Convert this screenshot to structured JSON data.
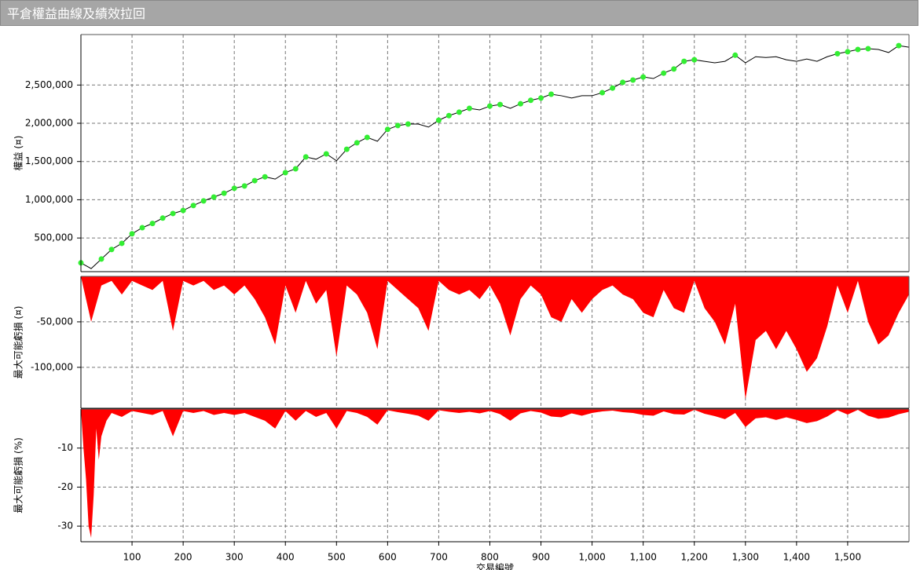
{
  "chart_data": [
    {
      "type": "line",
      "title": "平倉權益曲線及績效拉回",
      "ylabel": "權益 (¤)",
      "xlim": [
        0,
        1620
      ],
      "ylim": [
        60000,
        3160000
      ],
      "yticks": [
        {
          "value": 500000,
          "label": "500,000"
        },
        {
          "value": 1000000,
          "label": "1,000,000"
        },
        {
          "value": 1500000,
          "label": "1,500,000"
        },
        {
          "value": 2000000,
          "label": "2,000,000"
        },
        {
          "value": 2500000,
          "label": "2,500,000"
        }
      ],
      "grid": true,
      "series": [
        {
          "type": "line",
          "color": "#000000",
          "x": [
            0,
            20,
            40,
            60,
            80,
            100,
            120,
            140,
            160,
            180,
            200,
            220,
            240,
            260,
            280,
            300,
            320,
            340,
            360,
            380,
            400,
            420,
            440,
            460,
            480,
            500,
            520,
            540,
            560,
            580,
            600,
            620,
            640,
            660,
            680,
            700,
            720,
            740,
            760,
            780,
            800,
            820,
            840,
            860,
            880,
            900,
            920,
            940,
            960,
            980,
            1000,
            1020,
            1040,
            1060,
            1080,
            1100,
            1120,
            1140,
            1160,
            1180,
            1200,
            1220,
            1240,
            1260,
            1280,
            1300,
            1320,
            1340,
            1360,
            1380,
            1400,
            1420,
            1440,
            1460,
            1480,
            1500,
            1520,
            1540,
            1560,
            1580,
            1600,
            1620
          ],
          "values": [
            175000,
            100000,
            225000,
            350000,
            430000,
            555000,
            635000,
            690000,
            760000,
            820000,
            860000,
            925000,
            985000,
            1035000,
            1085000,
            1150000,
            1180000,
            1250000,
            1300000,
            1270000,
            1355000,
            1405000,
            1560000,
            1530000,
            1600000,
            1510000,
            1660000,
            1745000,
            1815000,
            1765000,
            1920000,
            1970000,
            1990000,
            1990000,
            1950000,
            2040000,
            2100000,
            2145000,
            2195000,
            2175000,
            2225000,
            2245000,
            2195000,
            2255000,
            2300000,
            2330000,
            2380000,
            2360000,
            2330000,
            2360000,
            2360000,
            2400000,
            2460000,
            2535000,
            2565000,
            2605000,
            2585000,
            2655000,
            2710000,
            2810000,
            2830000,
            2810000,
            2790000,
            2810000,
            2890000,
            2790000,
            2870000,
            2860000,
            2870000,
            2830000,
            2810000,
            2840000,
            2810000,
            2870000,
            2910000,
            2935000,
            2965000,
            2975000,
            2965000,
            2925000,
            3015000,
            2995000
          ]
        },
        {
          "type": "scatter",
          "color": "#33ee33",
          "x": [
            0,
            40,
            60,
            80,
            100,
            120,
            140,
            160,
            180,
            200,
            220,
            240,
            260,
            280,
            300,
            320,
            340,
            360,
            400,
            420,
            440,
            480,
            520,
            540,
            560,
            600,
            620,
            640,
            700,
            720,
            740,
            760,
            800,
            820,
            860,
            880,
            900,
            920,
            1020,
            1040,
            1060,
            1080,
            1100,
            1140,
            1160,
            1180,
            1200,
            1280,
            1480,
            1500,
            1520,
            1540,
            1600
          ],
          "values": [
            175000,
            225000,
            350000,
            430000,
            555000,
            635000,
            690000,
            760000,
            820000,
            860000,
            925000,
            985000,
            1035000,
            1085000,
            1150000,
            1180000,
            1250000,
            1300000,
            1355000,
            1405000,
            1560000,
            1600000,
            1660000,
            1745000,
            1815000,
            1920000,
            1970000,
            1990000,
            2040000,
            2100000,
            2145000,
            2195000,
            2225000,
            2245000,
            2255000,
            2300000,
            2330000,
            2380000,
            2400000,
            2460000,
            2535000,
            2565000,
            2605000,
            2655000,
            2710000,
            2810000,
            2830000,
            2890000,
            2910000,
            2935000,
            2965000,
            2975000,
            3015000
          ]
        }
      ]
    },
    {
      "type": "area",
      "ylabel": "最大可能虧損 (¤)",
      "color": "#ff0000",
      "xlim": [
        0,
        1620
      ],
      "ylim": [
        -145000,
        0
      ],
      "yticks": [
        {
          "value": -50000,
          "label": "-50,000"
        },
        {
          "value": -100000,
          "label": "-100,000"
        }
      ],
      "grid": true,
      "x": [
        0,
        20,
        40,
        60,
        80,
        100,
        120,
        140,
        160,
        180,
        200,
        220,
        240,
        260,
        280,
        300,
        320,
        340,
        360,
        380,
        400,
        420,
        440,
        460,
        480,
        500,
        520,
        540,
        560,
        580,
        600,
        620,
        640,
        660,
        680,
        700,
        720,
        740,
        760,
        780,
        800,
        820,
        840,
        860,
        880,
        900,
        920,
        940,
        960,
        980,
        1000,
        1020,
        1040,
        1060,
        1080,
        1100,
        1120,
        1140,
        1160,
        1180,
        1200,
        1220,
        1240,
        1260,
        1280,
        1300,
        1320,
        1340,
        1360,
        1380,
        1400,
        1420,
        1440,
        1460,
        1480,
        1500,
        1520,
        1540,
        1560,
        1580,
        1600,
        1620
      ],
      "values": [
        0,
        -50000,
        -10000,
        -5000,
        -20000,
        -5000,
        -10000,
        -15000,
        -5000,
        -60000,
        -5000,
        -10000,
        -5000,
        -15000,
        -10000,
        -20000,
        -10000,
        -25000,
        -45000,
        -75000,
        -10000,
        -40000,
        -5000,
        -30000,
        -15000,
        -88000,
        -10000,
        -20000,
        -40000,
        -80000,
        -5000,
        -15000,
        -25000,
        -35000,
        -60000,
        -5000,
        -15000,
        -20000,
        -15000,
        -25000,
        -10000,
        -30000,
        -65000,
        -25000,
        -10000,
        -20000,
        -45000,
        -50000,
        -25000,
        -40000,
        -25000,
        -15000,
        -10000,
        -20000,
        -25000,
        -40000,
        -45000,
        -15000,
        -35000,
        -40000,
        -5000,
        -35000,
        -50000,
        -75000,
        -30000,
        -135000,
        -70000,
        -60000,
        -80000,
        -60000,
        -80000,
        -105000,
        -90000,
        -55000,
        -10000,
        -40000,
        -5000,
        -50000,
        -75000,
        -65000,
        -40000,
        -20000
      ]
    },
    {
      "type": "area",
      "ylabel": "最大可能虧損 (%)",
      "xlabel": "交易編號",
      "color": "#ff0000",
      "xlim": [
        0,
        1620
      ],
      "ylim": [
        -34,
        0
      ],
      "yticks": [
        -10,
        -20,
        -30
      ],
      "xticks": [
        100,
        200,
        300,
        400,
        500,
        600,
        700,
        800,
        900,
        {
          "value": 1000,
          "label": "1,000"
        },
        {
          "value": 1100,
          "label": "1,100"
        },
        {
          "value": 1200,
          "label": "1,200"
        },
        {
          "value": 1300,
          "label": "1,300"
        },
        {
          "value": 1400,
          "label": "1,400"
        },
        {
          "value": 1500,
          "label": "1,500"
        }
      ],
      "grid": true,
      "x": [
        0,
        5,
        10,
        15,
        20,
        25,
        30,
        35,
        40,
        50,
        60,
        80,
        100,
        120,
        140,
        160,
        180,
        200,
        220,
        240,
        260,
        280,
        300,
        320,
        340,
        360,
        380,
        400,
        420,
        440,
        460,
        480,
        500,
        520,
        540,
        560,
        580,
        600,
        620,
        640,
        660,
        680,
        700,
        720,
        740,
        760,
        780,
        800,
        820,
        840,
        860,
        880,
        900,
        920,
        940,
        960,
        980,
        1000,
        1020,
        1040,
        1060,
        1080,
        1100,
        1120,
        1140,
        1160,
        1180,
        1200,
        1220,
        1240,
        1260,
        1280,
        1300,
        1320,
        1340,
        1360,
        1380,
        1400,
        1420,
        1440,
        1460,
        1480,
        1500,
        1520,
        1540,
        1560,
        1580,
        1600,
        1620
      ],
      "values": [
        0,
        -10,
        -18,
        -30,
        -33,
        -22,
        -5,
        -13,
        -7,
        -3,
        -1,
        -2,
        -0.5,
        -1,
        -1.5,
        -0.5,
        -7,
        -0.5,
        -1,
        -0.5,
        -1.5,
        -1,
        -1.5,
        -1,
        -2,
        -3,
        -5,
        -0.5,
        -3,
        -0.5,
        -2,
        -1,
        -5,
        -0.5,
        -1,
        -2,
        -4,
        -0.3,
        -0.8,
        -1.2,
        -1.7,
        -3,
        -0.3,
        -0.7,
        -1,
        -0.7,
        -1.1,
        -0.5,
        -1.3,
        -3,
        -1.1,
        -0.5,
        -0.9,
        -1.9,
        -2.1,
        -1.1,
        -1.7,
        -1,
        -0.6,
        -0.4,
        -0.8,
        -1,
        -1.5,
        -1.7,
        -0.6,
        -1.3,
        -1.4,
        -0.2,
        -1.2,
        -1.8,
        -2.6,
        -1,
        -4.6,
        -2.4,
        -2.1,
        -2.8,
        -2.1,
        -2.8,
        -3.6,
        -3.1,
        -1.9,
        -0.3,
        -1.4,
        -0.2,
        -1.7,
        -2.5,
        -2.2,
        -1.3,
        -0.7
      ]
    }
  ]
}
